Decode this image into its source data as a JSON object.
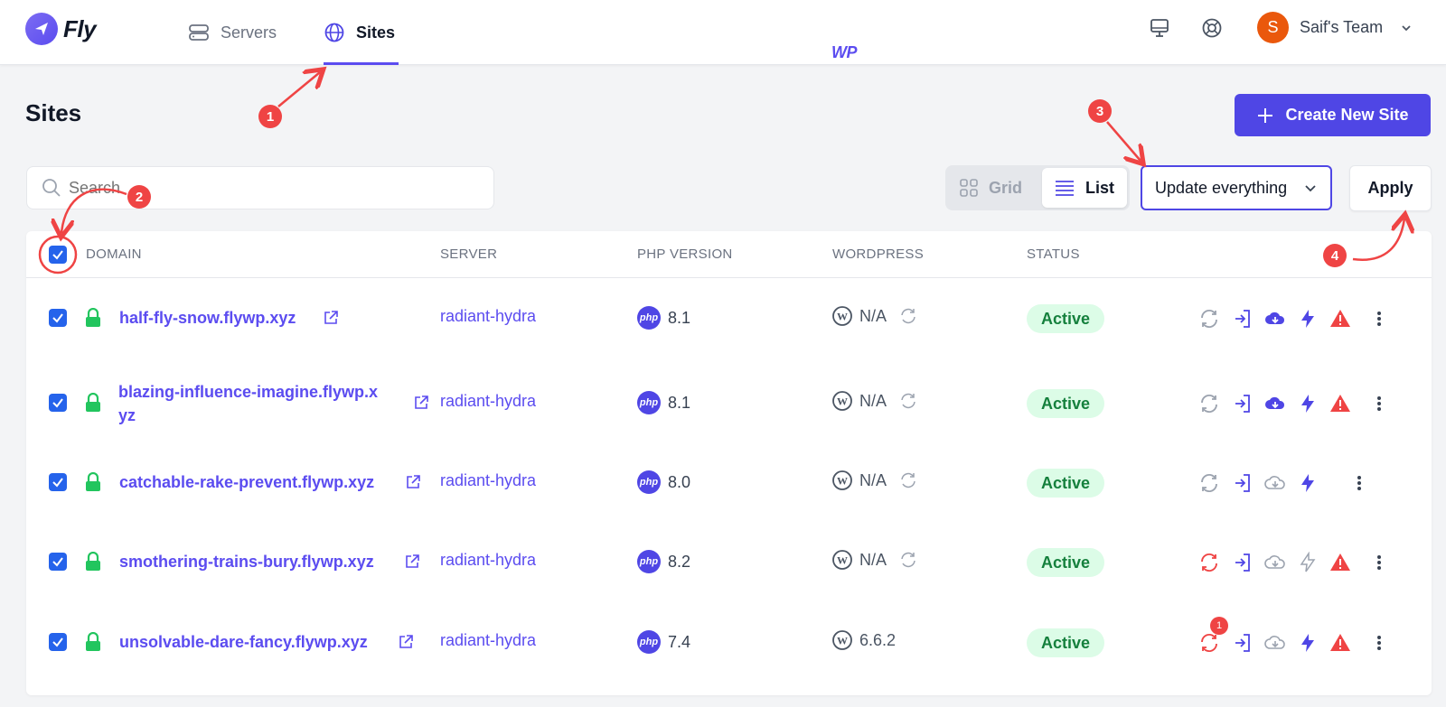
{
  "app": {
    "logo_text_fly": "Fly",
    "logo_text_wp": "WP"
  },
  "nav": {
    "servers_label": "Servers",
    "sites_label": "Sites"
  },
  "team": {
    "avatar_initial": "S",
    "name": "Saif's Team"
  },
  "page": {
    "title": "Sites",
    "create_button": "Create New Site"
  },
  "search": {
    "placeholder": "Search"
  },
  "view_toggle": {
    "grid_label": "Grid",
    "list_label": "List",
    "selected": "List"
  },
  "bulk_action": {
    "selected": "Update everything",
    "apply_label": "Apply"
  },
  "table": {
    "headers": {
      "domain": "DOMAIN",
      "server": "SERVER",
      "php": "PHP VERSION",
      "wordpress": "WORDPRESS",
      "status": "STATUS"
    },
    "php_badge": "php",
    "rows": [
      {
        "domain": "half-fly-snow.flywp.xyz",
        "server": "radiant-hydra",
        "php": "8.1",
        "wordpress": "N/A",
        "status": "Active"
      },
      {
        "domain_line1": "blazing-influence-imagine.flywp.x",
        "domain_line2": "yz",
        "server": "radiant-hydra",
        "php": "8.1",
        "wordpress": "N/A",
        "status": "Active"
      },
      {
        "domain": "catchable-rake-prevent.flywp.xyz",
        "server": "radiant-hydra",
        "php": "8.0",
        "wordpress": "N/A",
        "status": "Active"
      },
      {
        "domain": "smothering-trains-bury.flywp.xyz",
        "server": "radiant-hydra",
        "php": "8.2",
        "wordpress": "N/A",
        "status": "Active"
      },
      {
        "domain": "unsolvable-dare-fancy.flywp.xyz",
        "server": "radiant-hydra",
        "php": "7.4",
        "wordpress": "6.6.2",
        "status": "Active",
        "update_count": "1"
      }
    ]
  },
  "annotations": {
    "step1": "1",
    "step2": "2",
    "step3": "3",
    "step4": "4"
  },
  "colors": {
    "accent": "#4f46e5",
    "link": "#5b4cf0",
    "status_bg": "#dcfce7",
    "status_text": "#15803d",
    "warning": "#ef4444"
  }
}
